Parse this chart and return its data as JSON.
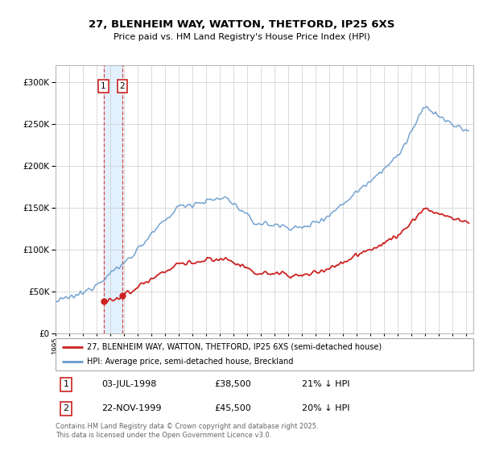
{
  "title_line1": "27, BLENHEIM WAY, WATTON, THETFORD, IP25 6XS",
  "title_line2": "Price paid vs. HM Land Registry's House Price Index (HPI)",
  "background_color": "#ffffff",
  "plot_bg_color": "#ffffff",
  "grid_color": "#cccccc",
  "hpi_color": "#6699cc",
  "price_color": "#cc2222",
  "shade_color": "#ddeeff",
  "transaction1": {
    "date": "03-JUL-1998",
    "price": 38500,
    "label": "1",
    "hpi_pct": "21% ↓ HPI",
    "t": 1998.5
  },
  "transaction2": {
    "date": "22-NOV-1999",
    "price": 45500,
    "label": "2",
    "hpi_pct": "20% ↓ HPI",
    "t": 1999.875
  },
  "legend_property": "27, BLENHEIM WAY, WATTON, THETFORD, IP25 6XS (semi-detached house)",
  "legend_hpi": "HPI: Average price, semi-detached house, Breckland",
  "footnote": "Contains HM Land Registry data © Crown copyright and database right 2025.\nThis data is licensed under the Open Government Licence v3.0.",
  "ylim_max": 320000,
  "ylim_min": 0,
  "start_year": 1995.0,
  "end_year": 2025.5,
  "yticks": [
    0,
    50000,
    100000,
    150000,
    200000,
    250000,
    300000
  ],
  "xticks": [
    1995,
    1996,
    1997,
    1998,
    1999,
    2000,
    2001,
    2002,
    2003,
    2004,
    2005,
    2006,
    2007,
    2008,
    2009,
    2010,
    2011,
    2012,
    2013,
    2014,
    2015,
    2016,
    2017,
    2018,
    2019,
    2020,
    2021,
    2022,
    2023,
    2024,
    2025
  ]
}
